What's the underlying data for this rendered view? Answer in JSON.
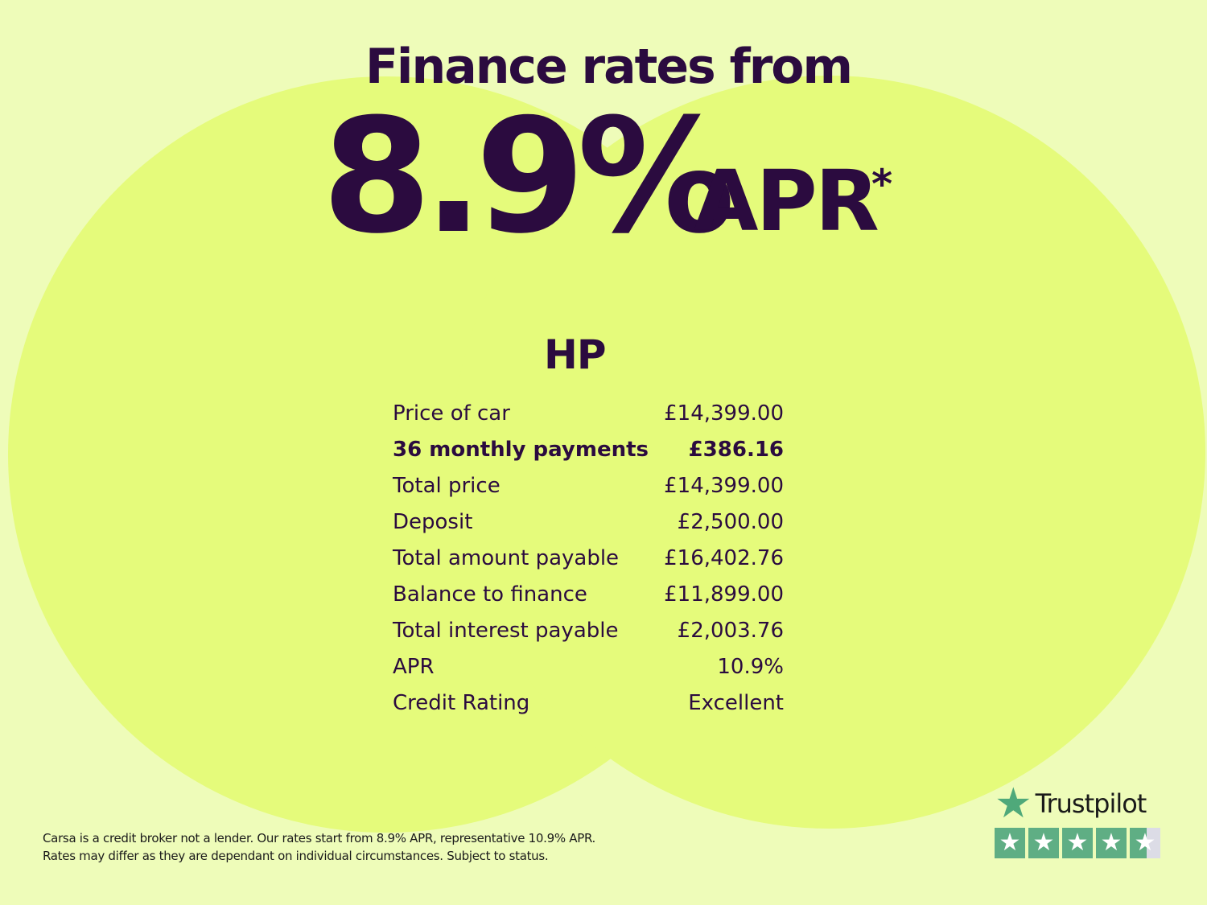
{
  "headline": "Finance rates from",
  "rate": "8.9%",
  "apr_label": "APR",
  "asterisk": "*",
  "product": "HP",
  "rows": [
    {
      "label": "Price of car",
      "value": "£14,399.00"
    },
    {
      "label": "36 monthly payments",
      "value": "£386.16",
      "bold": true
    },
    {
      "label": "Total price",
      "value": "£14,399.00"
    },
    {
      "label": "Deposit",
      "value": "£2,500.00"
    },
    {
      "label": "Total amount payable",
      "value": "£16,402.76"
    },
    {
      "label": "Balance to finance",
      "value": "£11,899.00"
    },
    {
      "label": "Total interest payable",
      "value": "£2,003.76"
    },
    {
      "label": "APR",
      "value": "10.9%"
    },
    {
      "label": "Credit Rating",
      "value": "Excellent"
    }
  ],
  "disclaimer": {
    "line1": "Carsa is a credit broker not a lender. Our rates start from 8.9% APR, representative 10.9% APR.",
    "line2": "Rates may differ as they are dependant on individual circumstances. Subject to status."
  },
  "trustpilot": {
    "name": "Trustpilot",
    "rating": 4.5,
    "max": 5,
    "star_color": "#5fae84"
  },
  "colors": {
    "background": "#eefcb9",
    "circle": "#e5fb7b",
    "text": "#2b0b3f"
  }
}
